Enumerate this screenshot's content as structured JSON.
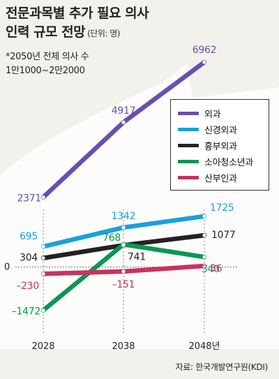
{
  "title_line1": "전문과목별 추가 필요 의사",
  "title_line2": "인력 규모 전망",
  "title_unit": "(단위: 명)",
  "note_line1": "*2050년 전체 의사 수",
  "note_line2": "1만1000~2만2000",
  "source": "자료: 한국개발연구원(KDI)",
  "chart_data": {
    "type": "line",
    "x": [
      "2028",
      "2038",
      "2048년"
    ],
    "ylim": [
      -1600,
      7200
    ],
    "zero_label": "0",
    "series": [
      {
        "name": "외과",
        "color": "#6a4fb0",
        "values": [
          2371,
          4917,
          6962
        ]
      },
      {
        "name": "신경외과",
        "color": "#1aa0dc",
        "values": [
          695,
          1342,
          1725
        ]
      },
      {
        "name": "흉부외과",
        "color": "#222222",
        "values": [
          304,
          741,
          1077
        ]
      },
      {
        "name": "소아청소년과",
        "color": "#0b9654",
        "values": [
          -1472,
          768,
          340
        ]
      },
      {
        "name": "산부인과",
        "color": "#c8325e",
        "values": [
          -230,
          -151,
          36
        ]
      }
    ]
  }
}
